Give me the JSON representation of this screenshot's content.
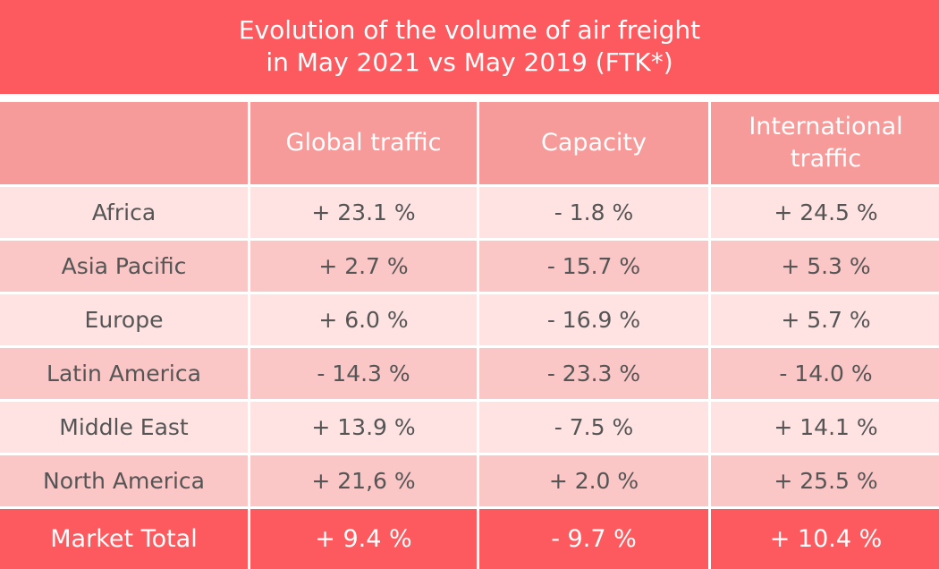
{
  "title_lines": [
    "Evolution of the volume of air freight",
    "in May 2021 vs May 2019 (FTK*)"
  ],
  "table": {
    "columns": [
      "Global traffic",
      "Capacity",
      "International traffic"
    ],
    "rows": [
      [
        "Africa",
        "+ 23.1 %",
        "- 1.8 %",
        "+ 24.5 %"
      ],
      [
        "Asia Pacific",
        "+ 2.7 %",
        "- 15.7 %",
        "+ 5.3 %"
      ],
      [
        "Europe",
        "+ 6.0 %",
        "- 16.9 %",
        "+ 5.7 %"
      ],
      [
        "Latin America",
        "- 14.3 %",
        "- 23.3 %",
        "- 14.0 %"
      ],
      [
        "Middle East",
        "+ 13.9 %",
        "- 7.5 %",
        "+ 14.1 %"
      ],
      [
        "North America",
        "+ 21,6 %",
        "+ 2.0 %",
        "+ 25.5 %"
      ]
    ],
    "total": [
      "Market Total",
      "+ 9.4 %",
      "- 9.7 %",
      "+ 10.4 %"
    ]
  }
}
